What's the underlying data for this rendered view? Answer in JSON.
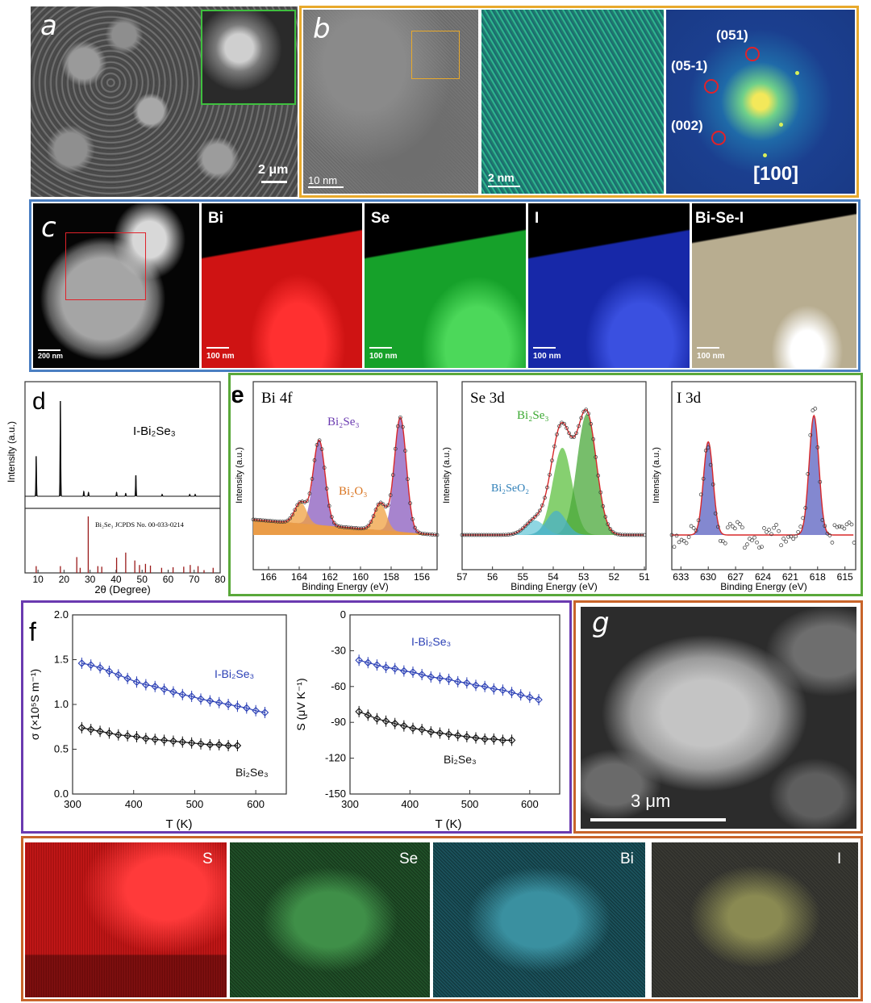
{
  "panels": {
    "a": {
      "label": "a",
      "scale_bar": "2 μm"
    },
    "b": {
      "label": "b",
      "scale_bar_1": "10 nm",
      "scale_bar_2": "2 nm",
      "fft_spots": [
        "(051)",
        "(05-1)",
        "(002)"
      ],
      "zone_axis": "[100]"
    },
    "c": {
      "label": "c",
      "maps": [
        {
          "element": "",
          "scale": "200 nm"
        },
        {
          "element": "Bi",
          "scale": "100 nm",
          "color": "#d41414"
        },
        {
          "element": "Se",
          "scale": "100 nm",
          "color": "#18a828"
        },
        {
          "element": "I",
          "scale": "100 nm",
          "color": "#1a2ab8"
        },
        {
          "element": "Bi-Se-I",
          "scale": "100 nm",
          "color": "#b9ae92"
        }
      ]
    },
    "d": {
      "label": "d",
      "sample": "I-Bi₂Se₃",
      "reference": "Bi₂Se₃ JCPDS No. 00-033-0214"
    },
    "e": {
      "label": "e",
      "titles": [
        "Bi 4f",
        "Se 3d",
        "I 3d"
      ],
      "annotations": [
        "Bi₂Se₃",
        "Bi₂O₃",
        "Bi₂Se₃",
        "Bi₂SeO₂"
      ]
    },
    "f": {
      "label": "f"
    },
    "g": {
      "label": "g",
      "scale_bar": "3 μm",
      "eds": [
        {
          "element": "S",
          "color": "#d01a1a"
        },
        {
          "element": "Se",
          "color": "#2c9a3a"
        },
        {
          "element": "Bi",
          "color": "#3aa8b8"
        },
        {
          "element": "I",
          "color": "#d8d890"
        }
      ]
    }
  },
  "chart_data": [
    {
      "id": "d-xrd",
      "type": "line",
      "xlabel": "2θ (Degree)",
      "ylabel": "Intensity (a.u.)",
      "xlim": [
        5,
        80
      ],
      "xticks": [
        10,
        20,
        30,
        40,
        50,
        60,
        70,
        80
      ],
      "series": [
        {
          "name": "I-Bi₂Se₃",
          "peaks": [
            [
              9.3,
              0.42
            ],
            [
              18.6,
              1.0
            ],
            [
              27.6,
              0.05
            ],
            [
              29.4,
              0.04
            ],
            [
              40.2,
              0.04
            ],
            [
              43.7,
              0.03
            ],
            [
              47.6,
              0.22
            ],
            [
              57.7,
              0.02
            ],
            [
              68.3,
              0.02
            ],
            [
              70.4,
              0.02
            ]
          ]
        },
        {
          "name": "Bi₂Se₃ JCPDS No. 00-033-0214",
          "peaks": [
            [
              9.3,
              0.12
            ],
            [
              18.6,
              0.12
            ],
            [
              24.9,
              0.28
            ],
            [
              26.2,
              0.09
            ],
            [
              29.3,
              1.0
            ],
            [
              33.0,
              0.12
            ],
            [
              34.5,
              0.11
            ],
            [
              40.2,
              0.27
            ],
            [
              43.7,
              0.36
            ],
            [
              47.2,
              0.22
            ],
            [
              49.0,
              0.14
            ],
            [
              51.3,
              0.16
            ],
            [
              53.2,
              0.13
            ],
            [
              57.5,
              0.09
            ],
            [
              61.9,
              0.1
            ],
            [
              66.0,
              0.11
            ],
            [
              68.5,
              0.14
            ],
            [
              71.5,
              0.12
            ],
            [
              73.8,
              0.05
            ],
            [
              77.3,
              0.09
            ]
          ]
        }
      ]
    },
    {
      "id": "e-bi4f",
      "type": "line",
      "title": "Bi 4f",
      "xlabel": "Binding Energy (eV)",
      "ylabel": "Intensity (a.u.)",
      "xlim": [
        167,
        155
      ],
      "xticks": [
        166,
        164,
        162,
        160,
        158,
        156
      ],
      "series": [
        {
          "name": "Bi₂Se₃",
          "peaks": [
            [
              162.7,
              1.0
            ],
            [
              157.4,
              1.35
            ]
          ]
        },
        {
          "name": "Bi₂O₃",
          "peaks": [
            [
              163.9,
              0.25
            ],
            [
              158.7,
              0.32
            ]
          ]
        }
      ]
    },
    {
      "id": "e-se3d",
      "type": "line",
      "title": "Se 3d",
      "xlabel": "Binding Energy (eV)",
      "ylabel": "Intensity (a.u.)",
      "xlim": [
        57,
        51
      ],
      "xticks": [
        57,
        56,
        55,
        54,
        53,
        52,
        51
      ],
      "series": [
        {
          "name": "Bi₂Se₃",
          "peaks": [
            [
              53.7,
              0.72
            ],
            [
              52.9,
              1.0
            ]
          ]
        },
        {
          "name": "Bi₂SeO₂",
          "peaks": [
            [
              54.6,
              0.12
            ],
            [
              53.9,
              0.2
            ]
          ]
        }
      ]
    },
    {
      "id": "e-i3d",
      "type": "line",
      "title": "I 3d",
      "xlabel": "Binding Energy (eV)",
      "ylabel": "Intensity (a.u.)",
      "xlim": [
        634,
        614
      ],
      "xticks": [
        633,
        630,
        627,
        624,
        621,
        618,
        615
      ],
      "series": [
        {
          "name": "",
          "peaks": [
            [
              630.0,
              0.78
            ],
            [
              618.4,
              1.0
            ]
          ]
        }
      ]
    },
    {
      "id": "f-sigma",
      "type": "line",
      "xlabel": "T (K)",
      "ylabel": "σ (×10⁵S m⁻¹)",
      "xlim": [
        300,
        650
      ],
      "ylim": [
        0.0,
        2.0
      ],
      "xticks": [
        300,
        400,
        500,
        600
      ],
      "yticks": [
        0.0,
        0.5,
        1.0,
        1.5,
        2.0
      ],
      "series": [
        {
          "name": "I-Bi₂Se₃",
          "color": "#2a3fb5",
          "x": [
            315,
            330,
            345,
            360,
            375,
            390,
            405,
            420,
            435,
            450,
            465,
            480,
            495,
            510,
            525,
            540,
            555,
            570,
            585,
            600,
            615
          ],
          "y": [
            1.46,
            1.44,
            1.41,
            1.37,
            1.33,
            1.29,
            1.25,
            1.22,
            1.2,
            1.17,
            1.14,
            1.11,
            1.09,
            1.06,
            1.04,
            1.02,
            1.0,
            0.98,
            0.96,
            0.93,
            0.91
          ]
        },
        {
          "name": "Bi₂Se₃",
          "color": "#111111",
          "x": [
            315,
            330,
            345,
            360,
            375,
            390,
            405,
            420,
            435,
            450,
            465,
            480,
            495,
            510,
            525,
            540,
            555,
            570
          ],
          "y": [
            0.74,
            0.72,
            0.7,
            0.68,
            0.66,
            0.65,
            0.64,
            0.62,
            0.61,
            0.6,
            0.59,
            0.58,
            0.57,
            0.56,
            0.55,
            0.55,
            0.54,
            0.54
          ]
        }
      ]
    },
    {
      "id": "f-seebeck",
      "type": "line",
      "xlabel": "T (K)",
      "ylabel": "S (μV K⁻¹)",
      "xlim": [
        300,
        650
      ],
      "ylim": [
        -150,
        0
      ],
      "xticks": [
        300,
        400,
        500,
        600
      ],
      "yticks": [
        0,
        -30,
        -60,
        -90,
        -120,
        -150
      ],
      "series": [
        {
          "name": "I-Bi₂Se₃",
          "color": "#2a3fb5",
          "x": [
            315,
            330,
            345,
            360,
            375,
            390,
            405,
            420,
            435,
            450,
            465,
            480,
            495,
            510,
            525,
            540,
            555,
            570,
            585,
            600,
            615
          ],
          "y": [
            -38,
            -40,
            -42,
            -44,
            -45,
            -47,
            -48,
            -50,
            -52,
            -53,
            -54,
            -56,
            -57,
            -59,
            -60,
            -62,
            -63,
            -65,
            -67,
            -69,
            -71
          ]
        },
        {
          "name": "Bi₂Se₃",
          "color": "#111111",
          "x": [
            315,
            330,
            345,
            360,
            375,
            390,
            405,
            420,
            435,
            450,
            465,
            480,
            495,
            510,
            525,
            540,
            555,
            570
          ],
          "y": [
            -81,
            -84,
            -87,
            -89,
            -91,
            -93,
            -95,
            -96,
            -98,
            -99,
            -100,
            -101,
            -102,
            -103,
            -104,
            -104,
            -105,
            -105
          ]
        }
      ]
    }
  ]
}
